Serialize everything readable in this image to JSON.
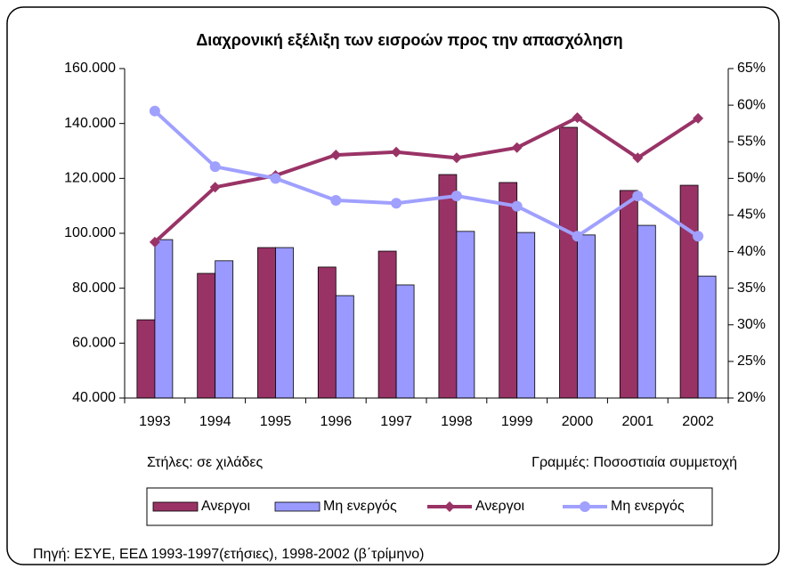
{
  "chart_data": {
    "type": "bar",
    "title": "Διαχρονική εξέλιξη των εισροών προς την απασχόληση",
    "categories": [
      "1993",
      "1994",
      "1995",
      "1996",
      "1997",
      "1998",
      "1999",
      "2000",
      "2001",
      "2002"
    ],
    "series": [
      {
        "name": "Ανεργοι",
        "kind": "bar",
        "color": "#993366",
        "values": [
          68500,
          85400,
          94800,
          87700,
          93500,
          121400,
          118500,
          138600,
          115600,
          117500
        ]
      },
      {
        "name": "Μη ενεργός",
        "kind": "bar",
        "color": "#9999ff",
        "values": [
          97700,
          90000,
          94800,
          77300,
          81200,
          100700,
          100300,
          99400,
          102900,
          84400
        ]
      },
      {
        "name": "Ανεργοι",
        "kind": "line",
        "axis": "y2",
        "marker": "diamond",
        "color": "#993366",
        "values": [
          41.3,
          48.8,
          50.4,
          53.2,
          53.6,
          52.8,
          54.2,
          58.3,
          52.8,
          58.2
        ]
      },
      {
        "name": "Μη ενεργός",
        "kind": "line",
        "axis": "y2",
        "marker": "circle",
        "color": "#a0a0ff",
        "values": [
          59.2,
          51.6,
          50,
          47,
          46.6,
          47.6,
          46.2,
          42.1,
          47.6,
          42.1
        ]
      }
    ],
    "ylim": [
      40000,
      160000
    ],
    "yticks": [
      {
        "value": 40000,
        "label": "40.000"
      },
      {
        "value": 60000,
        "label": "60.000"
      },
      {
        "value": 80000,
        "label": "80.000"
      },
      {
        "value": 100000,
        "label": "100.000"
      },
      {
        "value": 120000,
        "label": "120.000"
      },
      {
        "value": 140000,
        "label": "140.000"
      },
      {
        "value": 160000,
        "label": "160.000"
      }
    ],
    "y2lim": [
      20,
      65
    ],
    "y2ticks": [
      {
        "value": 20,
        "label": "20%"
      },
      {
        "value": 25,
        "label": "25%"
      },
      {
        "value": 30,
        "label": "30%"
      },
      {
        "value": 35,
        "label": "35%"
      },
      {
        "value": 40,
        "label": "40%"
      },
      {
        "value": 45,
        "label": "45%"
      },
      {
        "value": 50,
        "label": "50%"
      },
      {
        "value": 55,
        "label": "55%"
      },
      {
        "value": 60,
        "label": "60%"
      },
      {
        "value": 65,
        "label": "65%"
      }
    ],
    "grid": false,
    "legend": "bottom",
    "notes": [
      "Στήλες: σε χιλάδες",
      "Γραμμές: Ποσοστιαία συμμετοχή"
    ],
    "source": "Πηγή: ΕΣΥΕ, ΕΕΔ 1993-1997(ετήσιες), 1998-2002 (β΄τρίμηνο)"
  }
}
